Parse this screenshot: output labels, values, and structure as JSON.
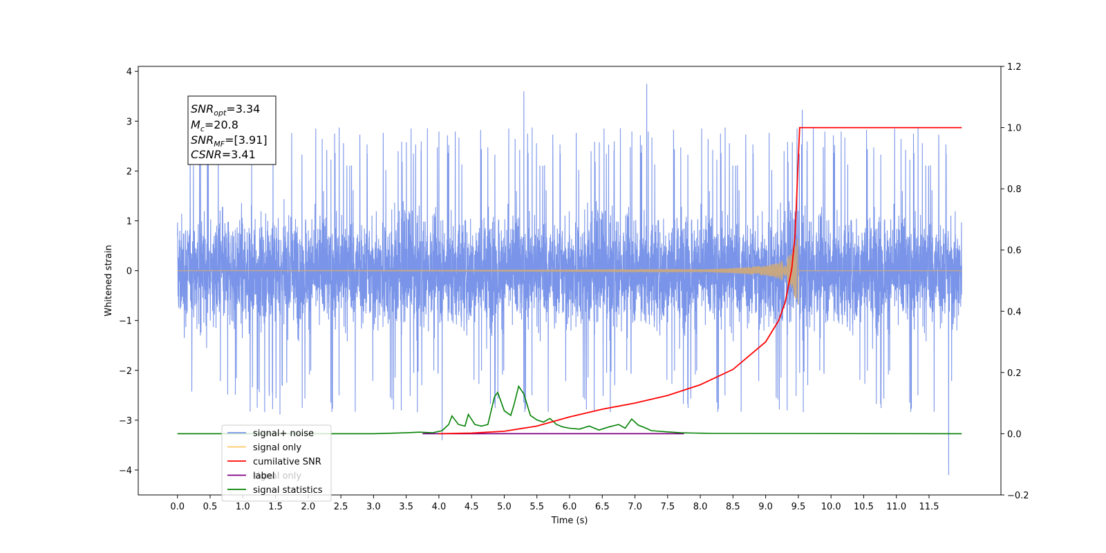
{
  "chart_data": {
    "type": "line",
    "xlabel": "Time (s)",
    "ylabel": "Whitened strain",
    "xlim": [
      -0.6,
      12.6
    ],
    "ylim": [
      -4.5,
      4.1
    ],
    "y2lim": [
      -0.2,
      1.2
    ],
    "x_ticks": [
      0.0,
      0.5,
      1.0,
      1.5,
      2.0,
      2.5,
      3.0,
      3.5,
      4.0,
      4.5,
      5.0,
      5.5,
      6.0,
      6.5,
      7.0,
      7.5,
      8.0,
      8.5,
      9.0,
      9.5,
      10.0,
      10.5,
      11.0,
      11.5
    ],
    "x_tick_labels": [
      "0.0",
      "0.5",
      "1.0",
      "1.5",
      "2.0",
      "2.5",
      "3.0",
      "3.5",
      "4.0",
      "4.5",
      "5.0",
      "5.5",
      "6.0",
      "6.5",
      "7.0",
      "7.5",
      "8.0",
      "8.5",
      "9.0",
      "9.5",
      "10.0",
      "10.5",
      "11.0",
      "11.5"
    ],
    "y_ticks": [
      4,
      3,
      2,
      1,
      0,
      -1,
      -2,
      -3,
      -4
    ],
    "y_tick_labels": [
      "4",
      "3",
      "2",
      "1",
      "0",
      "−1",
      "−2",
      "−3",
      "−4"
    ],
    "y2_ticks": [
      1.2,
      1.0,
      0.8,
      0.6,
      0.4,
      0.2,
      0.0,
      -0.2
    ],
    "y2_tick_labels": [
      "1.2",
      "1.0",
      "0.8",
      "0.6",
      "0.4",
      "0.2",
      "0.0",
      "−0.2"
    ],
    "grid": false,
    "legend_position": "bottom-left",
    "series": [
      {
        "name": "signal+ noise",
        "color": "#7994e8",
        "axis": "left",
        "x_range": [
          0.0,
          12.0
        ],
        "envelope": {
          "typical_min": -1.6,
          "typical_max": 1.6,
          "peak_min": -4.1,
          "peak_max": 3.75
        },
        "extrema": [
          [
            11.8,
            -4.1
          ],
          [
            7.18,
            3.75
          ],
          [
            5.3,
            3.6
          ],
          [
            9.56,
            3.23
          ],
          [
            4.05,
            -3.4
          ]
        ]
      },
      {
        "name": "signal only",
        "color": "#c8a882",
        "axis": "left",
        "x": [
          0.0,
          8.0,
          8.5,
          9.0,
          9.2,
          9.4,
          9.45,
          9.5
        ],
        "amplitude": [
          0.0,
          0.02,
          0.05,
          0.1,
          0.16,
          0.35,
          0.55,
          0.68
        ]
      },
      {
        "name": "cumilative SNR",
        "color": "#ff0000",
        "axis": "right",
        "x": [
          4.0,
          4.5,
          5.0,
          5.5,
          6.0,
          6.5,
          7.0,
          7.5,
          8.0,
          8.5,
          9.0,
          9.2,
          9.3,
          9.4,
          9.45,
          9.5,
          9.52,
          12.0
        ],
        "y": [
          0.0,
          0.002,
          0.008,
          0.025,
          0.055,
          0.08,
          0.1,
          0.125,
          0.16,
          0.21,
          0.3,
          0.37,
          0.43,
          0.54,
          0.65,
          0.9,
          1.0,
          1.0
        ]
      },
      {
        "name": "label",
        "color": "#800080",
        "axis": "right",
        "x": [
          3.75,
          7.75
        ],
        "y": [
          0.0,
          0.0
        ]
      },
      {
        "name": "signal statistics",
        "color": "#008000",
        "axis": "right",
        "x": [
          0.0,
          3.0,
          3.5,
          3.7,
          3.9,
          4.05,
          4.15,
          4.2,
          4.3,
          4.4,
          4.45,
          4.55,
          4.65,
          4.75,
          4.85,
          4.9,
          5.0,
          5.1,
          5.15,
          5.22,
          5.3,
          5.4,
          5.5,
          5.6,
          5.7,
          5.8,
          5.9,
          6.0,
          6.15,
          6.3,
          6.45,
          6.6,
          6.75,
          6.85,
          6.95,
          7.05,
          7.15,
          7.25,
          7.5,
          7.7,
          7.9,
          8.2,
          12.0
        ],
        "y": [
          0.0,
          0.0,
          0.003,
          0.005,
          0.003,
          0.01,
          0.03,
          0.058,
          0.03,
          0.025,
          0.063,
          0.03,
          0.025,
          0.03,
          0.12,
          0.135,
          0.075,
          0.06,
          0.095,
          0.155,
          0.13,
          0.06,
          0.045,
          0.038,
          0.05,
          0.03,
          0.022,
          0.018,
          0.015,
          0.025,
          0.012,
          0.022,
          0.03,
          0.018,
          0.048,
          0.028,
          0.02,
          0.01,
          0.006,
          0.003,
          0.002,
          0.001,
          0.0
        ]
      }
    ],
    "legend": [
      "signal+ noise",
      "signal only",
      "cumilative SNR",
      "label",
      "signal statistics"
    ],
    "legend_overlap_text": "signal only",
    "annotation": {
      "snr_opt_value": "=3.34",
      "mc_value": "=20.8",
      "snr_mf_value": "=[3.91]",
      "csnr_value": "=3.41"
    }
  }
}
